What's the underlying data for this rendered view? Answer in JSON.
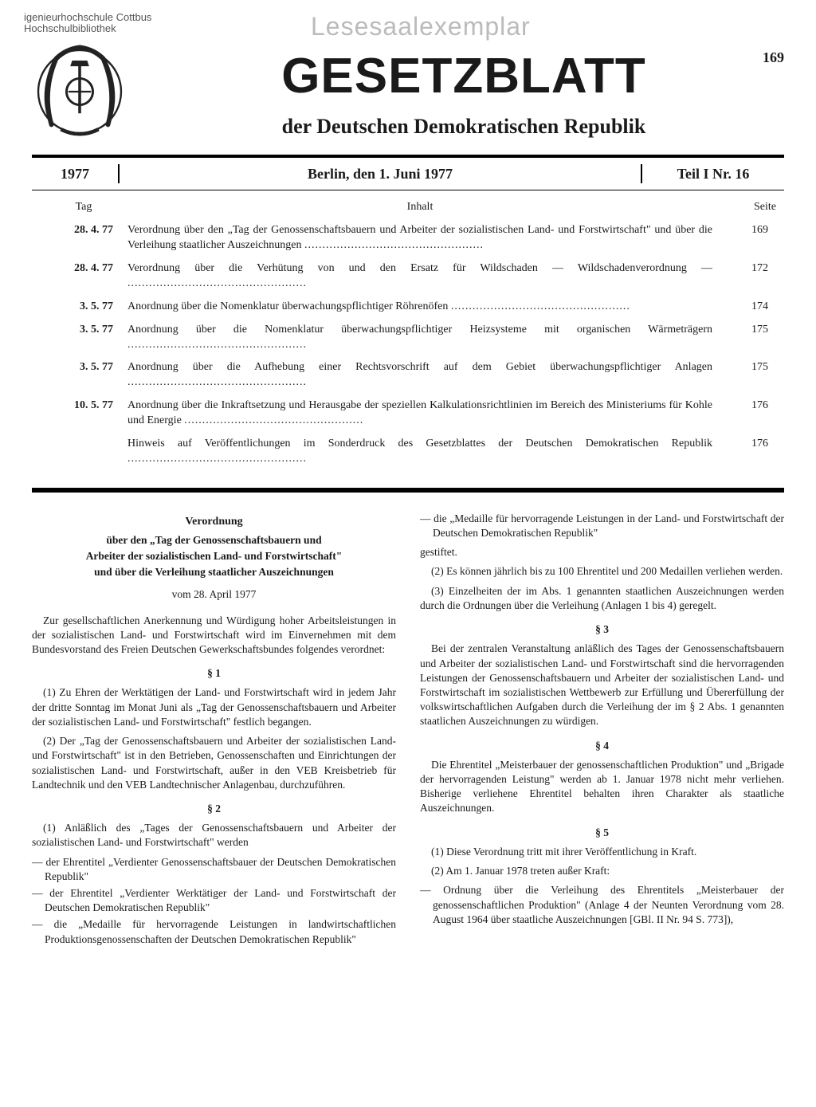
{
  "stamps": {
    "library_line1": "igenieurhochschule Cottbus",
    "library_line2": "Hochschulbibliothek",
    "watermark": "Lesesaalexemplar"
  },
  "masthead": {
    "title": "GESETZBLATT",
    "subtitle": "der Deutschen Demokratischen Republik",
    "page_number": "169"
  },
  "dateline": {
    "year": "1977",
    "place_date": "Berlin, den 1. Juni 1977",
    "issue": "Teil I Nr. 16"
  },
  "toc": {
    "head_tag": "Tag",
    "head_inhalt": "Inhalt",
    "head_seite": "Seite",
    "rows": [
      {
        "tag": "28. 4. 77",
        "text": "Verordnung über den „Tag der Genossenschaftsbauern und Arbeiter der sozialistischen Land- und Forstwirtschaft\" und über die Verleihung staatlicher Auszeichnungen",
        "seite": "169"
      },
      {
        "tag": "28. 4. 77",
        "text": "Verordnung über die Verhütung von und den Ersatz für Wildschaden — Wildschadenverordnung —",
        "seite": "172"
      },
      {
        "tag": "3. 5. 77",
        "text": "Anordnung über die Nomenklatur überwachungspflichtiger Röhrenöfen",
        "seite": "174"
      },
      {
        "tag": "3. 5. 77",
        "text": "Anordnung über die Nomenklatur überwachungspflichtiger Heizsysteme mit organischen Wärmeträgern",
        "seite": "175"
      },
      {
        "tag": "3. 5. 77",
        "text": "Anordnung über die Aufhebung einer Rechtsvorschrift auf dem Gebiet überwachungspflichtiger Anlagen",
        "seite": "175"
      },
      {
        "tag": "10. 5. 77",
        "text": "Anordnung über die Inkraftsetzung und Herausgabe der speziellen Kalkulationsrichtlinien im Bereich des Ministeriums für Kohle und Energie",
        "seite": "176"
      },
      {
        "tag": "",
        "text": "Hinweis auf Veröffentlichungen im Sonderdruck des Gesetzblattes der Deutschen Demokratischen Republik",
        "seite": "176"
      }
    ]
  },
  "body": {
    "decree_heading": "Verordnung",
    "decree_title_l1": "über den „Tag der Genossenschaftsbauern und",
    "decree_title_l2": "Arbeiter der sozialistischen Land- und Forstwirtschaft\"",
    "decree_title_l3": "und über die Verleihung staatlicher Auszeichnungen",
    "decree_date": "vom 28. April 1977",
    "preamble": "Zur gesellschaftlichen Anerkennung und Würdigung hoher Arbeitsleistungen in der sozialistischen Land- und Forstwirtschaft wird im Einvernehmen mit dem Bundesvorstand des Freien Deutschen Gewerkschaftsbundes folgendes verordnet:",
    "s1": "§ 1",
    "s1_p1": "(1) Zu Ehren der Werktätigen der Land- und Forstwirtschaft wird in jedem Jahr der dritte Sonntag im Monat Juni als „Tag der Genossenschaftsbauern und Arbeiter der sozialistischen Land- und Forstwirtschaft\" festlich begangen.",
    "s1_p2": "(2) Der „Tag der Genossenschaftsbauern und Arbeiter der sozialistischen Land- und Forstwirtschaft\" ist in den Betrieben, Genossenschaften und Einrichtungen der sozialistischen Land- und Forstwirtschaft, außer in den VEB Kreisbetrieb für Landtechnik und den VEB Landtechnischer Anlagenbau, durchzuführen.",
    "s2": "§ 2",
    "s2_p1": "(1) Anläßlich des „Tages der Genossenschaftsbauern und Arbeiter der sozialistischen Land- und Forstwirtschaft\" werden",
    "s2_li1": "der Ehrentitel „Verdienter Genossenschaftsbauer der Deutschen Demokratischen Republik\"",
    "s2_li2": "der Ehrentitel „Verdienter Werktätiger der Land- und Forstwirtschaft der Deutschen Demokratischen Republik\"",
    "s2_li3": "die „Medaille für hervorragende Leistungen in landwirtschaftlichen Produktionsgenossenschaften der Deutschen Demokratischen Republik\"",
    "s2_li4": "die „Medaille für hervorragende Leistungen in der Land- und Forstwirtschaft der Deutschen Demokratischen Republik\"",
    "s2_gest": "gestiftet.",
    "s2_p2": "(2) Es können jährlich bis zu 100 Ehrentitel und 200 Medaillen verliehen werden.",
    "s2_p3": "(3) Einzelheiten der im Abs. 1 genannten staatlichen Auszeichnungen werden durch die Ordnungen über die Verleihung (Anlagen 1 bis 4) geregelt.",
    "s3": "§ 3",
    "s3_p1": "Bei der zentralen Veranstaltung anläßlich des Tages der Genossenschaftsbauern und Arbeiter der sozialistischen Land- und Forstwirtschaft sind die hervorragenden Leistungen der Genossenschaftsbauern und Arbeiter der sozialistischen Land- und Forstwirtschaft im sozialistischen Wettbewerb zur Erfüllung und Übererfüllung der volkswirtschaftlichen Aufgaben durch die Verleihung der im § 2 Abs. 1 genannten staatlichen Auszeichnungen zu würdigen.",
    "s4": "§ 4",
    "s4_p1": "Die Ehrentitel „Meisterbauer der genossenschaftlichen Produktion\" und „Brigade der hervorragenden Leistung\" werden ab 1. Januar 1978 nicht mehr verliehen. Bisherige verliehene Ehrentitel behalten ihren Charakter als staatliche Auszeichnungen.",
    "s5": "§ 5",
    "s5_p1": "(1) Diese Verordnung tritt mit ihrer Veröffentlichung in Kraft.",
    "s5_p2": "(2) Am 1. Januar 1978 treten außer Kraft:",
    "s5_li1": "Ordnung über die Verleihung des Ehrentitels „Meisterbauer der genossenschaftlichen Produktion\" (Anlage 4 der Neunten Verordnung vom 28. August 1964 über staatliche Auszeichnungen [GBl. II Nr. 94 S. 773]),"
  }
}
